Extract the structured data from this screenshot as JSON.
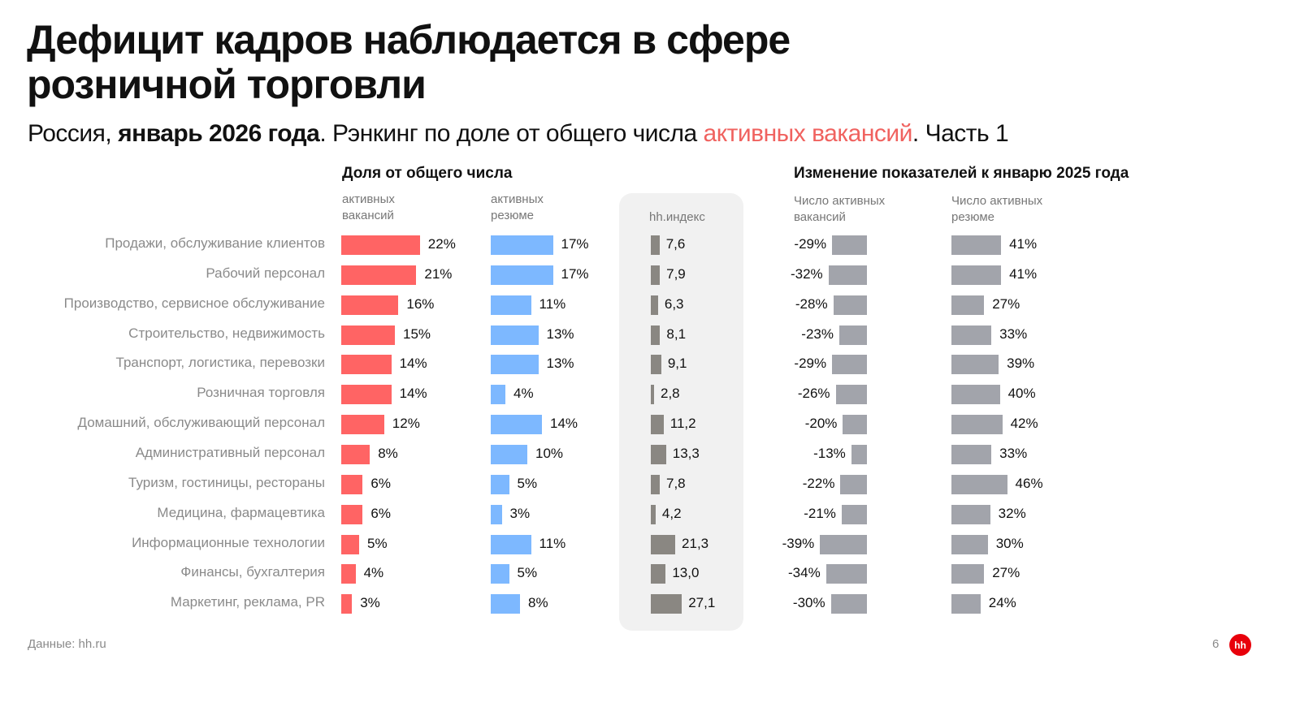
{
  "title": "Дефицит кадров наблюдается в сфере розничной торговли",
  "subtitle": {
    "part1": "Россия, ",
    "bold": "январь 2026 года",
    "part2": ". Рэнкинг по доле от общего числа ",
    "accent": "активных вакансий",
    "part3": ". Часть 1"
  },
  "colors": {
    "accent": "#f0625f",
    "vacancies": "#ff6464",
    "resumes": "#7db8ff",
    "hh_index": "#8a8782",
    "change": "#a2a4ab",
    "logo": "#e8000b"
  },
  "footer": {
    "source": "Данные: hh.ru",
    "page": "6",
    "logo_text": "hh"
  },
  "chart_data": {
    "type": "bar",
    "categories": [
      "Продажи, обслуживание клиентов",
      "Рабочий персонал",
      "Производство, сервисное обслуживание",
      "Строительство, недвижимость",
      "Транспорт, логистика, перевозки",
      "Розничная торговля",
      "Домашний, обслуживающий персонал",
      "Административный персонал",
      "Туризм, гостиницы, рестораны",
      "Медицина, фармацевтика",
      "Информационные технологии",
      "Финансы, бухгалтерия",
      "Маркетинг, реклама, PR"
    ],
    "group1_title": "Доля от общего числа",
    "group2_title": "Изменение показателей к январю 2025 года",
    "series": [
      {
        "name": "активных вакансий",
        "unit": "%",
        "values": [
          22,
          21,
          16,
          15,
          14,
          14,
          12,
          8,
          6,
          6,
          5,
          4,
          3
        ]
      },
      {
        "name": "активных резюме",
        "unit": "%",
        "values": [
          17,
          17,
          11,
          13,
          13,
          4,
          14,
          10,
          5,
          3,
          11,
          5,
          8
        ]
      },
      {
        "name": "hh.индекс",
        "unit": "",
        "values": [
          7.6,
          7.9,
          6.3,
          8.1,
          9.1,
          2.8,
          11.2,
          13.3,
          7.8,
          4.2,
          21.3,
          13.0,
          27.1
        ]
      },
      {
        "name": "Число активных вакансий",
        "unit": "%",
        "values": [
          -29,
          -32,
          -28,
          -23,
          -29,
          -26,
          -20,
          -13,
          -22,
          -21,
          -39,
          -34,
          -30
        ]
      },
      {
        "name": "Число активных резюме",
        "unit": "%",
        "values": [
          41,
          41,
          27,
          33,
          39,
          40,
          42,
          33,
          46,
          32,
          30,
          27,
          24
        ]
      }
    ],
    "series_labels": [
      [
        "активных",
        "вакансий"
      ],
      [
        "активных",
        "резюме"
      ],
      [
        "hh.индекс"
      ],
      [
        "Число активных",
        "вакансий"
      ],
      [
        "Число активных",
        "резюме"
      ]
    ]
  }
}
